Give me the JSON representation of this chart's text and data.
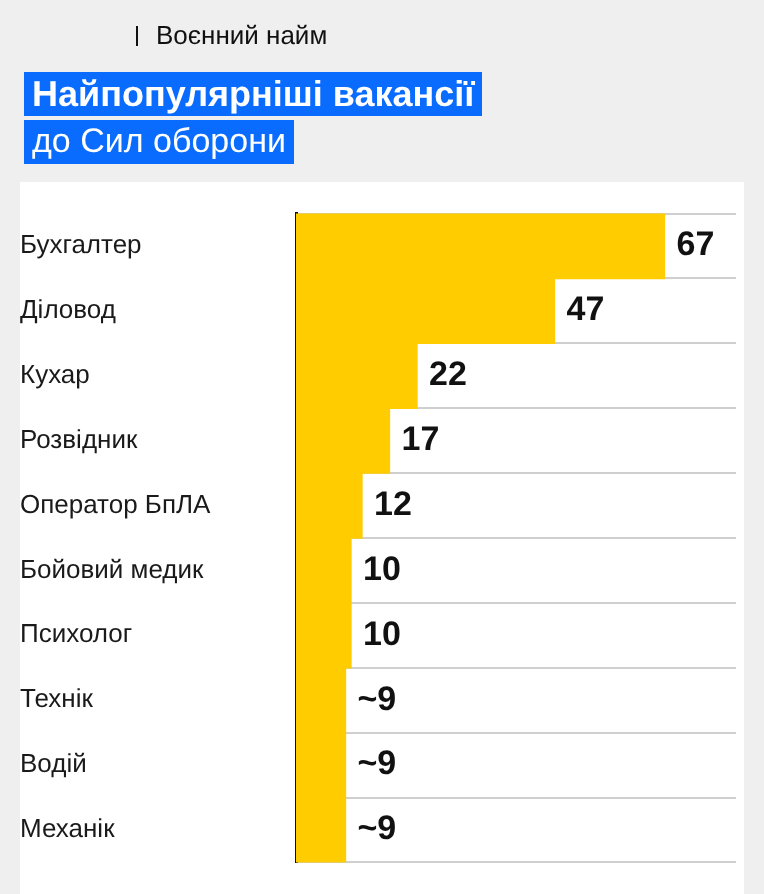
{
  "chart_data": {
    "type": "bar",
    "orientation": "horizontal",
    "title": "Найпопулярніші вакансії",
    "subtitle": "до Сил оборони",
    "annotations": [
      "Воєнний найм"
    ],
    "categories": [
      "Бухгалтер",
      "Діловод",
      "Кухар",
      "Розвідник",
      "Оператор БпЛА",
      "Бойовий медик",
      "Психолог",
      "Технік",
      "Водій",
      "Механік"
    ],
    "values": [
      67,
      47,
      22,
      17,
      12,
      10,
      10,
      9,
      9,
      9
    ],
    "value_labels": [
      "67",
      "47",
      "22",
      "17",
      "12",
      "10",
      "10",
      "~9",
      "~9",
      "~9"
    ],
    "color": "#ffcc00",
    "grid": "y",
    "legend": false
  }
}
